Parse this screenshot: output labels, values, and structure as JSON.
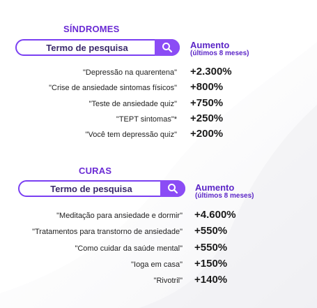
{
  "sindromes": {
    "title": "SÍNDROMES",
    "search_label": "Termo de pesquisa",
    "search_icon": "search-icon",
    "col_header": "Aumento",
    "col_sub": "(últimos 8 meses)",
    "rows": [
      {
        "term": "\"Depressão na quarentena\"",
        "value": "+2.300%"
      },
      {
        "term": "\"Crise de ansiedade sintomas físicos\"",
        "value": "+800%"
      },
      {
        "term": "\"Teste de ansiedade quiz\"",
        "value": "+750%"
      },
      {
        "term": "\"TEPT sintomas\"*",
        "value": "+250%"
      },
      {
        "term": "\"Você tem depressão quiz\"",
        "value": "+200%"
      }
    ]
  },
  "curas": {
    "title": "CURAS",
    "search_label": "Termo de pesquisa",
    "search_icon": "search-icon",
    "col_header": "Aumento",
    "col_sub": "(últimos 8 meses)",
    "rows": [
      {
        "term": "\"Meditação para ansiedade e dormir\"",
        "value": "+4.600%"
      },
      {
        "term": "\"Tratamentos para transtorno de ansiedade\"",
        "value": "+550%"
      },
      {
        "term": "\"Como cuidar da saúde mental\"",
        "value": "+550%"
      },
      {
        "term": "\"Ioga em casa\"",
        "value": "+150%"
      },
      {
        "term": "\"Rivotril\"",
        "value": "+140%"
      }
    ]
  },
  "colors": {
    "accent": "#8b4cf5",
    "title": "#6a2bd4"
  }
}
